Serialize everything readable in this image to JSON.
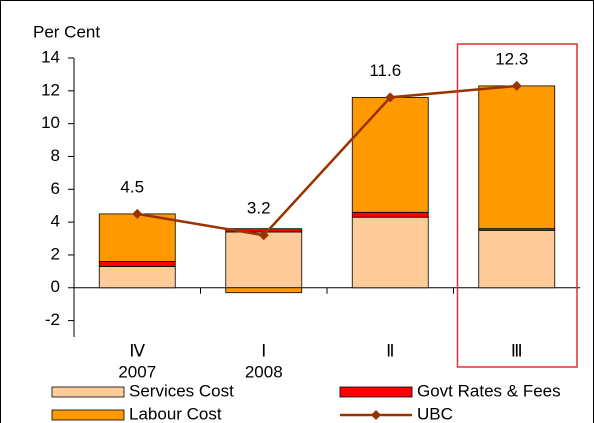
{
  "chart_data": {
    "type": "bar",
    "stacked": true,
    "y_label": "Per Cent",
    "categories": [
      [
        "Ⅳ",
        "2007"
      ],
      [
        "Ⅰ",
        "2008"
      ],
      [
        "Ⅱ"
      ],
      [
        "Ⅲ"
      ]
    ],
    "series": [
      {
        "name": "Services Cost",
        "color": "#ffcc99",
        "values": [
          1.3,
          3.4,
          4.3,
          3.5
        ]
      },
      {
        "name": "Govt Rates & Fees",
        "color": "#ff0000",
        "values": [
          0.3,
          0.2,
          0.3,
          0.1
        ]
      },
      {
        "name": "Labour Cost",
        "color": "#ff9900",
        "values": [
          2.9,
          -0.3,
          7.0,
          8.7
        ]
      },
      {
        "name": "UBC",
        "color": "#993300",
        "type": "line",
        "values": [
          4.5,
          3.2,
          11.6,
          12.3
        ]
      }
    ],
    "ylim": [
      -3,
      14
    ],
    "yticks": [
      -2,
      0,
      2,
      4,
      6,
      8,
      10,
      12,
      14
    ],
    "highlight_color": "#e03030"
  }
}
